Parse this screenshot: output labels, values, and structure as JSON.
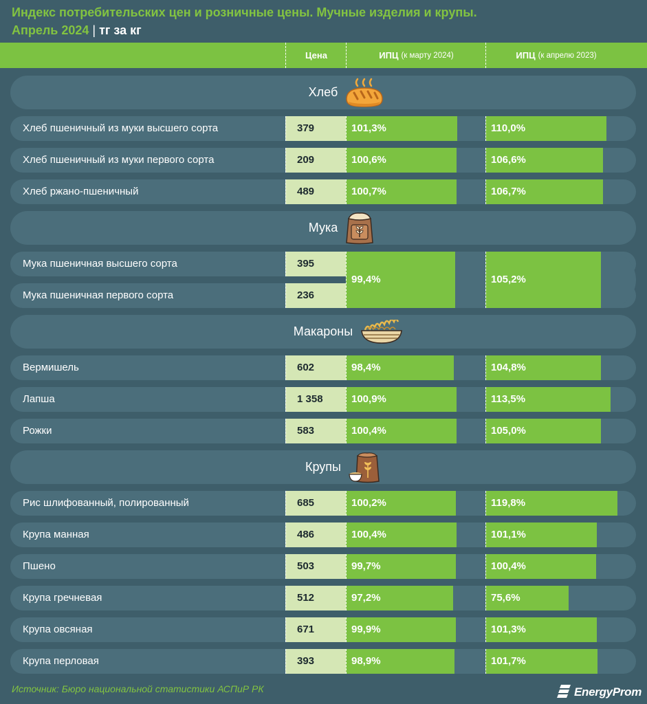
{
  "title": {
    "line1": "Индекс потребительских цен и розничные цены. Мучные изделия и крупы.",
    "period": "Апрель 2024",
    "separator": "|",
    "unit": "тг за кг"
  },
  "header": {
    "price": "Цена",
    "cpi_month_main": "ИПЦ",
    "cpi_month_sub": "(к марту 2024)",
    "cpi_year_main": "ИПЦ",
    "cpi_year_sub": "(к апрелю 2023)"
  },
  "colors": {
    "accent": "#7cc242",
    "background": "#3e5e6a",
    "row": "#4b6e7b",
    "price_cell": "#d5e7b5"
  },
  "chart_data": {
    "type": "table",
    "columns": [
      "Цена",
      "ИПЦ (к марту 2024)",
      "ИПЦ (к апрелю 2023)"
    ],
    "sections": [
      {
        "name": "Хлеб",
        "icon": "bread-icon",
        "rows": [
          {
            "label": "Хлеб пшеничный из муки высшего сорта",
            "price": "379",
            "cpi_month": 101.3,
            "cpi_month_text": "101,3%",
            "cpi_year": 110.0,
            "cpi_year_text": "110,0%"
          },
          {
            "label": "Хлеб пшеничный из муки первого сорта",
            "price": "209",
            "cpi_month": 100.6,
            "cpi_month_text": "100,6%",
            "cpi_year": 106.6,
            "cpi_year_text": "106,6%"
          },
          {
            "label": "Хлеб ржано-пшеничный",
            "price": "489",
            "cpi_month": 100.7,
            "cpi_month_text": "100,7%",
            "cpi_year": 106.7,
            "cpi_year_text": "106,7%"
          }
        ]
      },
      {
        "name": "Мука",
        "icon": "flour-sack-icon",
        "rows": [
          {
            "label": "Мука пшеничная высшего сорта",
            "price": "395"
          },
          {
            "label": "Мука пшеничная первого сорта",
            "price": "236"
          }
        ],
        "shared": {
          "cpi_month": 99.4,
          "cpi_month_text": "99,4%",
          "cpi_year": 105.2,
          "cpi_year_text": "105,2%"
        }
      },
      {
        "name": "Макароны",
        "icon": "pasta-bowl-icon",
        "rows": [
          {
            "label": "Вермишель",
            "price": "602",
            "cpi_month": 98.4,
            "cpi_month_text": "98,4%",
            "cpi_year": 104.8,
            "cpi_year_text": "104,8%"
          },
          {
            "label": "Лапша",
            "price": "1 358",
            "cpi_month": 100.9,
            "cpi_month_text": "100,9%",
            "cpi_year": 113.5,
            "cpi_year_text": "113,5%"
          },
          {
            "label": "Рожки",
            "price": "583",
            "cpi_month": 100.4,
            "cpi_month_text": "100,4%",
            "cpi_year": 105.0,
            "cpi_year_text": "105,0%"
          }
        ]
      },
      {
        "name": "Крупы",
        "icon": "grain-sack-icon",
        "rows": [
          {
            "label": "Рис шлифованный, полированный",
            "price": "685",
            "cpi_month": 100.2,
            "cpi_month_text": "100,2%",
            "cpi_year": 119.8,
            "cpi_year_text": "119,8%"
          },
          {
            "label": "Крупа манная",
            "price": "486",
            "cpi_month": 100.4,
            "cpi_month_text": "100,4%",
            "cpi_year": 101.1,
            "cpi_year_text": "101,1%"
          },
          {
            "label": "Пшено",
            "price": "503",
            "cpi_month": 99.7,
            "cpi_month_text": "99,7%",
            "cpi_year": 100.4,
            "cpi_year_text": "100,4%"
          },
          {
            "label": "Крупа гречневая",
            "price": "512",
            "cpi_month": 97.2,
            "cpi_month_text": "97,2%",
            "cpi_year": 75.6,
            "cpi_year_text": "75,6%"
          },
          {
            "label": "Крупа овсяная",
            "price": "671",
            "cpi_month": 99.9,
            "cpi_month_text": "99,9%",
            "cpi_year": 101.3,
            "cpi_year_text": "101,3%"
          },
          {
            "label": "Крупа перловая",
            "price": "393",
            "cpi_month": 98.9,
            "cpi_month_text": "98,9%",
            "cpi_year": 101.7,
            "cpi_year_text": "101,7%"
          }
        ]
      }
    ]
  },
  "footer": {
    "source": "Источник: Бюро национальной статистики АСПиР РК",
    "logo_text": "EnergyProm",
    "logo_icon": "energyprom-logo-icon"
  }
}
